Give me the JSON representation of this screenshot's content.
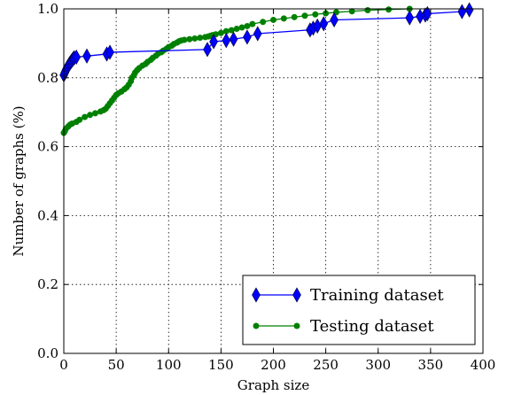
{
  "chart_data": {
    "type": "line",
    "title": "",
    "xlabel": "Graph size",
    "ylabel": "Number of graphs (%)",
    "xlim": [
      0,
      400
    ],
    "ylim": [
      0.0,
      1.0
    ],
    "xticks": [
      "0",
      "50",
      "100",
      "150",
      "200",
      "250",
      "300",
      "350",
      "400"
    ],
    "yticks": [
      "0.0",
      "0.2",
      "0.4",
      "0.6",
      "0.8",
      "1.0"
    ],
    "grid": true,
    "legend_position": "lower-right",
    "series": [
      {
        "name": "Training dataset",
        "color": "#0000ff",
        "marker": "diamond",
        "x": [
          0,
          1,
          2,
          3,
          4,
          5,
          6,
          7,
          8,
          9,
          10,
          12,
          22,
          41,
          44,
          137,
          143,
          155,
          162,
          175,
          185,
          235,
          238,
          242,
          248,
          258,
          330,
          340,
          345,
          347,
          380,
          387
        ],
        "y": [
          0.808,
          0.815,
          0.822,
          0.828,
          0.833,
          0.838,
          0.843,
          0.847,
          0.851,
          0.855,
          0.858,
          0.86,
          0.863,
          0.869,
          0.874,
          0.882,
          0.905,
          0.908,
          0.912,
          0.918,
          0.928,
          0.939,
          0.944,
          0.95,
          0.957,
          0.968,
          0.974,
          0.978,
          0.982,
          0.986,
          0.992,
          0.997
        ]
      },
      {
        "name": "Testing dataset",
        "color": "#008000",
        "marker": "circle",
        "x": [
          0,
          1,
          2,
          4,
          6,
          8,
          12,
          15,
          20,
          25,
          30,
          35,
          38,
          40,
          42,
          44,
          46,
          48,
          50,
          52,
          55,
          58,
          60,
          62,
          64,
          65,
          67,
          68,
          70,
          72,
          75,
          78,
          80,
          83,
          85,
          88,
          90,
          93,
          95,
          98,
          100,
          103,
          105,
          108,
          110,
          112,
          115,
          120,
          125,
          130,
          135,
          138,
          140,
          142,
          145,
          150,
          155,
          160,
          165,
          170,
          175,
          180,
          190,
          200,
          210,
          220,
          230,
          240,
          250,
          260,
          275,
          290,
          310,
          330
        ],
        "y": [
          0.64,
          0.645,
          0.652,
          0.658,
          0.664,
          0.667,
          0.672,
          0.678,
          0.686,
          0.692,
          0.697,
          0.702,
          0.706,
          0.71,
          0.718,
          0.726,
          0.734,
          0.742,
          0.75,
          0.755,
          0.76,
          0.767,
          0.772,
          0.78,
          0.79,
          0.8,
          0.808,
          0.815,
          0.822,
          0.828,
          0.835,
          0.84,
          0.846,
          0.852,
          0.858,
          0.864,
          0.87,
          0.874,
          0.879,
          0.884,
          0.889,
          0.893,
          0.898,
          0.902,
          0.906,
          0.908,
          0.91,
          0.912,
          0.914,
          0.916,
          0.918,
          0.92,
          0.922,
          0.924,
          0.926,
          0.93,
          0.935,
          0.938,
          0.942,
          0.946,
          0.95,
          0.956,
          0.962,
          0.968,
          0.972,
          0.976,
          0.98,
          0.984,
          0.987,
          0.99,
          0.993,
          0.996,
          0.998,
          1.0
        ]
      }
    ]
  }
}
